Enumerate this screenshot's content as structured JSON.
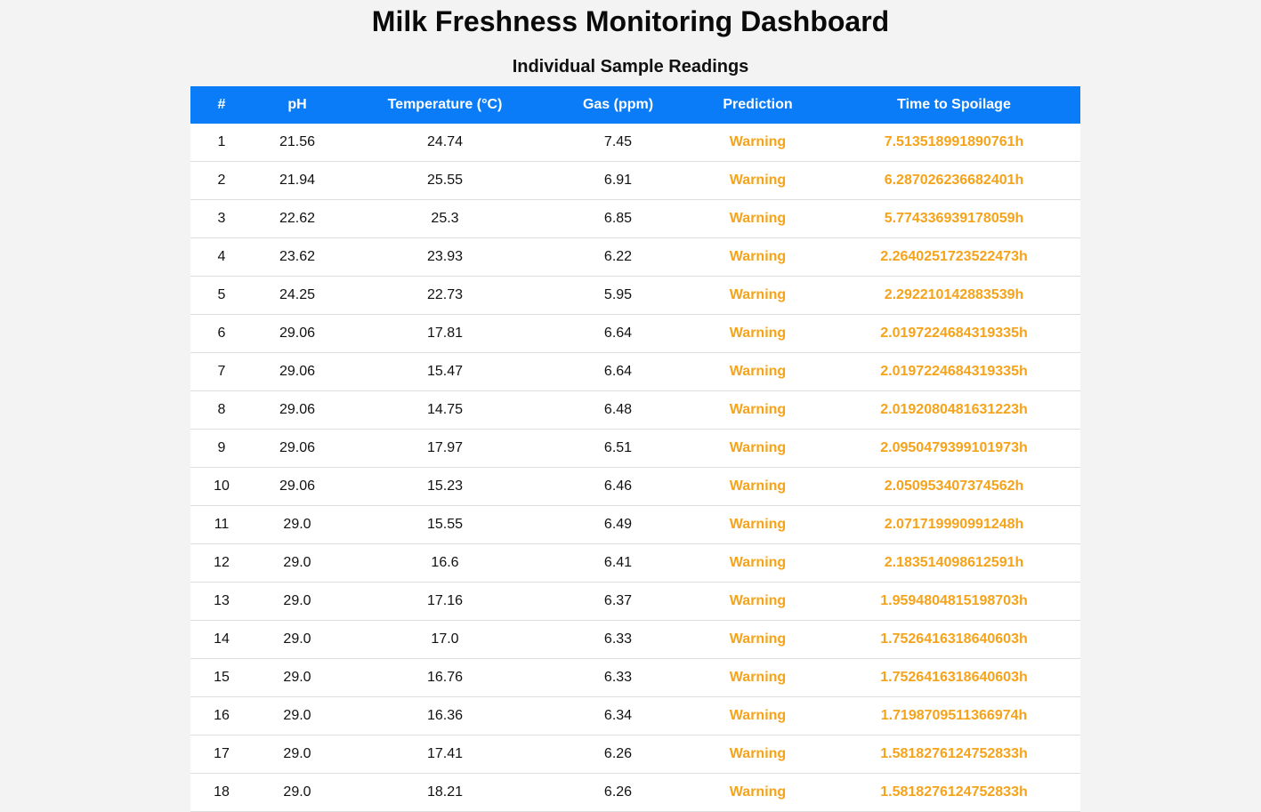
{
  "page": {
    "title": "Milk Freshness Monitoring Dashboard",
    "section_title": "Individual Sample Readings"
  },
  "colors": {
    "header_bg": "#0b7cf8",
    "warning": "#f5a31a",
    "page_bg": "#f3f3f3"
  },
  "table": {
    "headers": [
      "#",
      "pH",
      "Temperature (°C)",
      "Gas (ppm)",
      "Prediction",
      "Time to Spoilage"
    ],
    "rows": [
      [
        "1",
        "21.56",
        "24.74",
        "7.45",
        "Warning",
        "7.513518991890761h"
      ],
      [
        "2",
        "21.94",
        "25.55",
        "6.91",
        "Warning",
        "6.287026236682401h"
      ],
      [
        "3",
        "22.62",
        "25.3",
        "6.85",
        "Warning",
        "5.774336939178059h"
      ],
      [
        "4",
        "23.62",
        "23.93",
        "6.22",
        "Warning",
        "2.2640251723522473h"
      ],
      [
        "5",
        "24.25",
        "22.73",
        "5.95",
        "Warning",
        "2.292210142883539h"
      ],
      [
        "6",
        "29.06",
        "17.81",
        "6.64",
        "Warning",
        "2.0197224684319335h"
      ],
      [
        "7",
        "29.06",
        "15.47",
        "6.64",
        "Warning",
        "2.0197224684319335h"
      ],
      [
        "8",
        "29.06",
        "14.75",
        "6.48",
        "Warning",
        "2.0192080481631223h"
      ],
      [
        "9",
        "29.06",
        "17.97",
        "6.51",
        "Warning",
        "2.0950479399101973h"
      ],
      [
        "10",
        "29.06",
        "15.23",
        "6.46",
        "Warning",
        "2.050953407374562h"
      ],
      [
        "11",
        "29.0",
        "15.55",
        "6.49",
        "Warning",
        "2.071719990991248h"
      ],
      [
        "12",
        "29.0",
        "16.6",
        "6.41",
        "Warning",
        "2.183514098612591h"
      ],
      [
        "13",
        "29.0",
        "17.16",
        "6.37",
        "Warning",
        "1.9594804815198703h"
      ],
      [
        "14",
        "29.0",
        "17.0",
        "6.33",
        "Warning",
        "1.7526416318640603h"
      ],
      [
        "15",
        "29.0",
        "16.76",
        "6.33",
        "Warning",
        "1.7526416318640603h"
      ],
      [
        "16",
        "29.0",
        "16.36",
        "6.34",
        "Warning",
        "1.7198709511366974h"
      ],
      [
        "17",
        "29.0",
        "17.41",
        "6.26",
        "Warning",
        "1.5818276124752833h"
      ],
      [
        "18",
        "29.0",
        "18.21",
        "6.26",
        "Warning",
        "1.5818276124752833h"
      ]
    ]
  }
}
